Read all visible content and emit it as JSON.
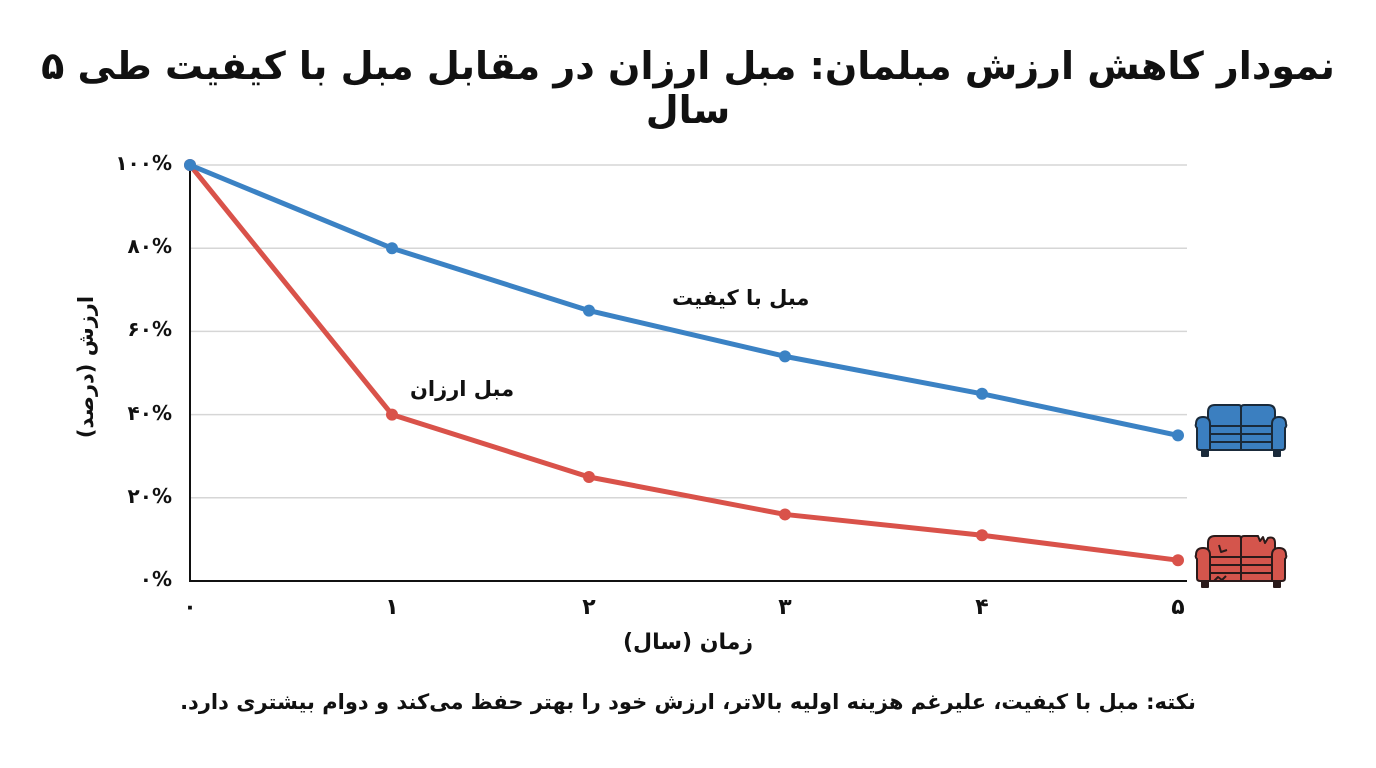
{
  "title": "نمودار کاهش ارزش مبلمان: مبل ارزان در مقابل مبل با کیفیت طی ۵ سال",
  "chart_data": {
    "type": "line",
    "title": "نمودار کاهش ارزش مبلمان: مبل ارزان در مقابل مبل با کیفیت طی ۵ سال",
    "xlabel": "زمان (سال)",
    "ylabel": "ارزش (درصد)",
    "x": [
      0,
      1,
      2,
      3,
      4,
      5
    ],
    "x_tick_labels": [
      "۰",
      "۱",
      "۲",
      "۳",
      "۴",
      "۵"
    ],
    "y_tick_labels": [
      "۰%",
      "۲۰%",
      "۴۰%",
      "۶۰%",
      "۸۰%",
      "۱۰۰%"
    ],
    "ylim": [
      0,
      100
    ],
    "grid": true,
    "legend": "inline labels + sofa icons at right",
    "series": [
      {
        "name": "مبل با کیفیت",
        "color": "#3b82c4",
        "values": [
          100,
          80,
          65,
          54,
          45,
          35
        ]
      },
      {
        "name": "مبل ارزان",
        "color": "#d9524a",
        "values": [
          100,
          40,
          25,
          16,
          11,
          5
        ]
      }
    ]
  },
  "labels": {
    "quality": "مبل با کیفیت",
    "cheap": "مبل ارزان"
  },
  "note": "نکته: مبل با کیفیت، علیرغم هزینه اولیه بالاتر، ارزش خود را بهتر حفظ می‌کند و دوام بیشتری دارد.",
  "icons": {
    "quality_sofa": "sofa-icon-blue",
    "cheap_sofa": "damaged-sofa-icon-red"
  }
}
